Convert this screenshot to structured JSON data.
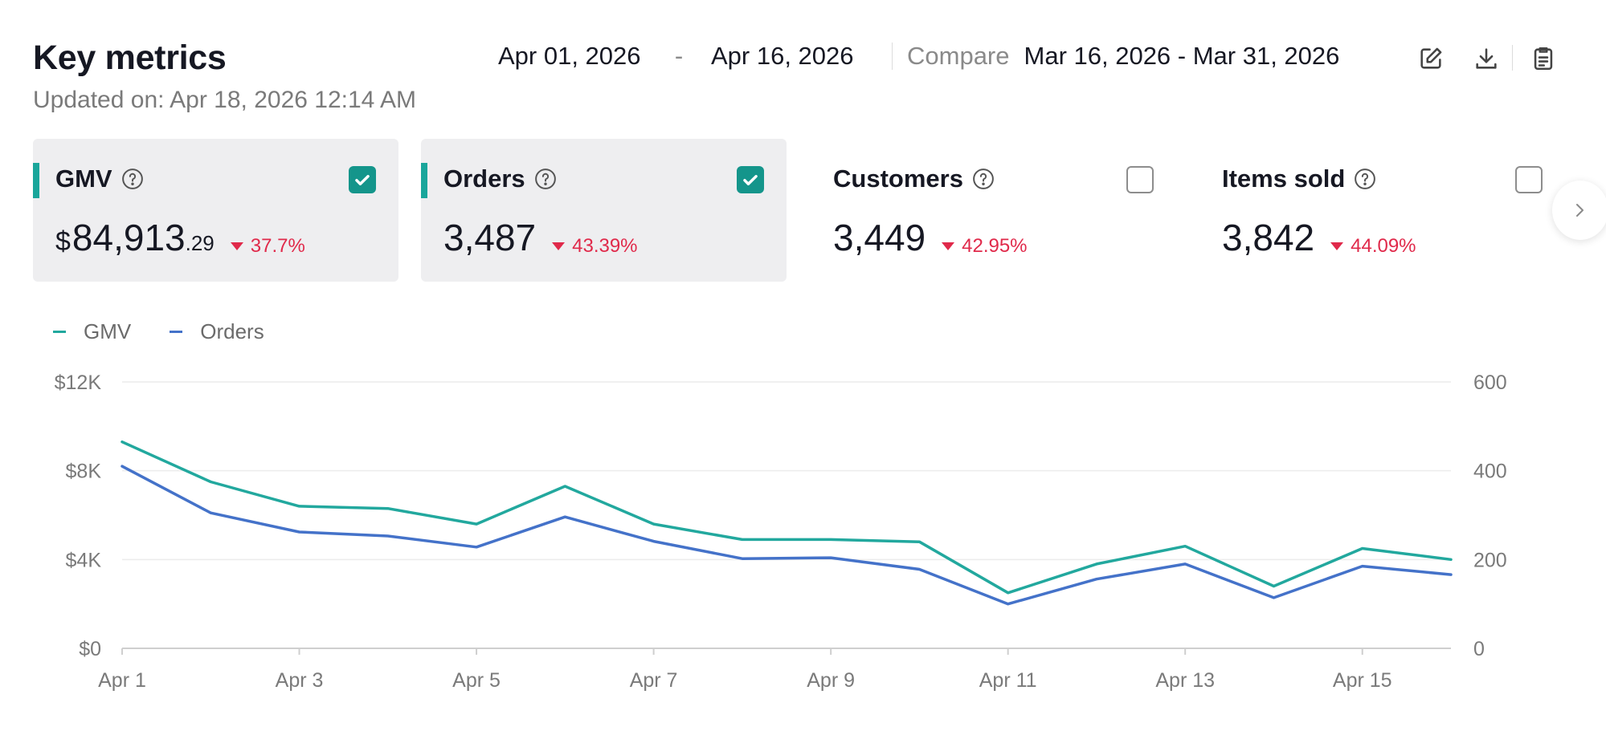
{
  "header": {
    "title": "Key metrics",
    "updated": "Updated on: Apr 18, 2026 12:14 AM",
    "date_start": "Apr 01, 2026",
    "date_separator": "-",
    "date_end": "Apr 16, 2026",
    "compare_label": "Compare",
    "compare_range": "Mar 16, 2026 - Mar 31, 2026",
    "icons": [
      "edit-icon",
      "download-icon",
      "clipboard-icon"
    ]
  },
  "cards": [
    {
      "label": "GMV",
      "currency": "$",
      "value": "84,913",
      "cents": ".29",
      "delta": "37.7%",
      "checked": true
    },
    {
      "label": "Orders",
      "value": "3,487",
      "delta": "43.39%",
      "checked": true
    },
    {
      "label": "Customers",
      "value": "3,449",
      "delta": "42.95%",
      "checked": false
    },
    {
      "label": "Items sold",
      "value": "3,842",
      "delta": "44.09%",
      "checked": false
    }
  ],
  "colors": {
    "gmv": "#22a89e",
    "orders": "#4472c9",
    "delta_down": "#e0294a",
    "accent": "#1aa69b"
  },
  "chart_data": {
    "type": "line",
    "x": [
      "Apr 1",
      "Apr 2",
      "Apr 3",
      "Apr 4",
      "Apr 5",
      "Apr 6",
      "Apr 7",
      "Apr 8",
      "Apr 9",
      "Apr 10",
      "Apr 11",
      "Apr 12",
      "Apr 13",
      "Apr 14",
      "Apr 15",
      "Apr 16"
    ],
    "x_tick_labels": [
      "Apr 1",
      "Apr 3",
      "Apr 5",
      "Apr 7",
      "Apr 9",
      "Apr 11",
      "Apr 13",
      "Apr 15"
    ],
    "series": [
      {
        "name": "GMV",
        "axis": "left",
        "values": [
          9300,
          7500,
          6400,
          6300,
          5600,
          7300,
          5600,
          4900,
          4900,
          4800,
          2500,
          3800,
          4600,
          2800,
          4500,
          4000
        ]
      },
      {
        "name": "Orders",
        "axis": "right",
        "values": [
          410,
          305,
          262,
          253,
          228,
          296,
          241,
          202,
          204,
          178,
          100,
          156,
          190,
          114,
          185,
          166
        ]
      }
    ],
    "y_left": {
      "ticks": [
        "$0",
        "$4K",
        "$8K",
        "$12K"
      ],
      "ylim": [
        0,
        12000
      ]
    },
    "y_right": {
      "ticks": [
        "0",
        "200",
        "400",
        "600"
      ],
      "ylim": [
        0,
        600
      ]
    },
    "grid": true,
    "legend": "top-left"
  }
}
